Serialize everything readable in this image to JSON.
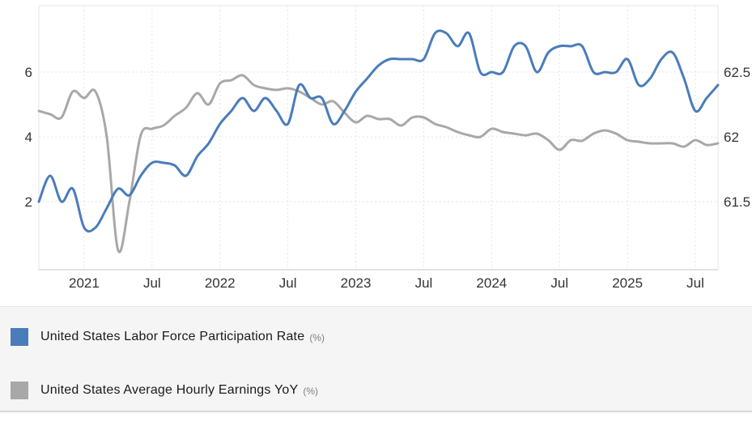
{
  "chart_data": {
    "type": "line",
    "style": "smooth-spline, dual y-axis, dotted grid, legend bottom",
    "frequency": "monthly",
    "x_start": "2020-09",
    "x_end": "2025-09",
    "x_axis_ticks": [
      {
        "label": "2021",
        "month_index": 4
      },
      {
        "label": "Jul",
        "month_index": 10
      },
      {
        "label": "2022",
        "month_index": 16
      },
      {
        "label": "Jul",
        "month_index": 22
      },
      {
        "label": "2023",
        "month_index": 28
      },
      {
        "label": "Jul",
        "month_index": 34
      },
      {
        "label": "2024",
        "month_index": 40
      },
      {
        "label": "Jul",
        "month_index": 46
      },
      {
        "label": "2025",
        "month_index": 52
      },
      {
        "label": "Jul",
        "month_index": 58
      }
    ],
    "y_axis_left": {
      "tick_labels": [
        "2",
        "4",
        "6"
      ],
      "tick_values": [
        2,
        4,
        6
      ],
      "for_series": "United States Average Hourly Earnings YoY"
    },
    "y_axis_right": {
      "tick_labels": [
        "61.5",
        "62",
        "62.5"
      ],
      "tick_values": [
        61.5,
        62,
        62.5
      ],
      "for_series": "United States Labor Force Participation Rate"
    },
    "series": [
      {
        "name": "United States Labor Force Participation Rate",
        "unit": "%",
        "color": "#4a7cbb",
        "axis": "right",
        "values": [
          61.5,
          61.7,
          61.5,
          61.6,
          61.3,
          61.3,
          61.45,
          61.6,
          61.55,
          61.7,
          61.8,
          61.8,
          61.78,
          61.7,
          61.85,
          61.95,
          62.1,
          62.2,
          62.3,
          62.2,
          62.3,
          62.2,
          62.1,
          62.4,
          62.3,
          62.3,
          62.1,
          62.2,
          62.35,
          62.45,
          62.55,
          62.6,
          62.6,
          62.6,
          62.6,
          62.8,
          62.8,
          62.7,
          62.8,
          62.5,
          62.5,
          62.5,
          62.7,
          62.7,
          62.5,
          62.65,
          62.7,
          62.7,
          62.7,
          62.5,
          62.5,
          62.5,
          62.6,
          62.4,
          62.45,
          62.6,
          62.65,
          62.45,
          62.2,
          62.3,
          62.4
        ]
      },
      {
        "name": "United States Average Hourly Earnings YoY",
        "unit": "%",
        "color": "#a8a8a8",
        "axis": "left",
        "values": [
          4.8,
          4.7,
          4.6,
          5.4,
          5.2,
          5.4,
          4.0,
          0.5,
          2.0,
          4.05,
          4.25,
          4.35,
          4.65,
          4.9,
          5.35,
          5.0,
          5.65,
          5.75,
          5.9,
          5.6,
          5.5,
          5.45,
          5.5,
          5.4,
          5.2,
          5.0,
          5.1,
          4.75,
          4.45,
          4.65,
          4.55,
          4.55,
          4.35,
          4.6,
          4.6,
          4.4,
          4.3,
          4.15,
          4.05,
          4.0,
          4.25,
          4.15,
          4.1,
          4.05,
          4.1,
          3.9,
          3.6,
          3.9,
          3.88,
          4.1,
          4.2,
          4.1,
          3.9,
          3.85,
          3.8,
          3.8,
          3.8,
          3.7,
          3.9,
          3.75,
          3.8
        ]
      }
    ],
    "grid": "dotted",
    "legend_position": "bottom"
  },
  "legend": {
    "items": [
      {
        "label": "United States Labor Force Participation Rate",
        "unit": "(%)",
        "color": "#4a7cbb"
      },
      {
        "label": "United States Average Hourly Earnings YoY",
        "unit": "(%)",
        "color": "#a8a8a8"
      }
    ]
  },
  "theme": {
    "background": "#ffffff",
    "plot_border": "#e6e6e6",
    "grid_color": "#e4e4e4",
    "axis_line": "#c9c9c9",
    "tick_text": "#333333",
    "legend_background": "#f5f5f6",
    "legend_text": "#1b1b1b",
    "legend_unit_text": "#808080"
  }
}
